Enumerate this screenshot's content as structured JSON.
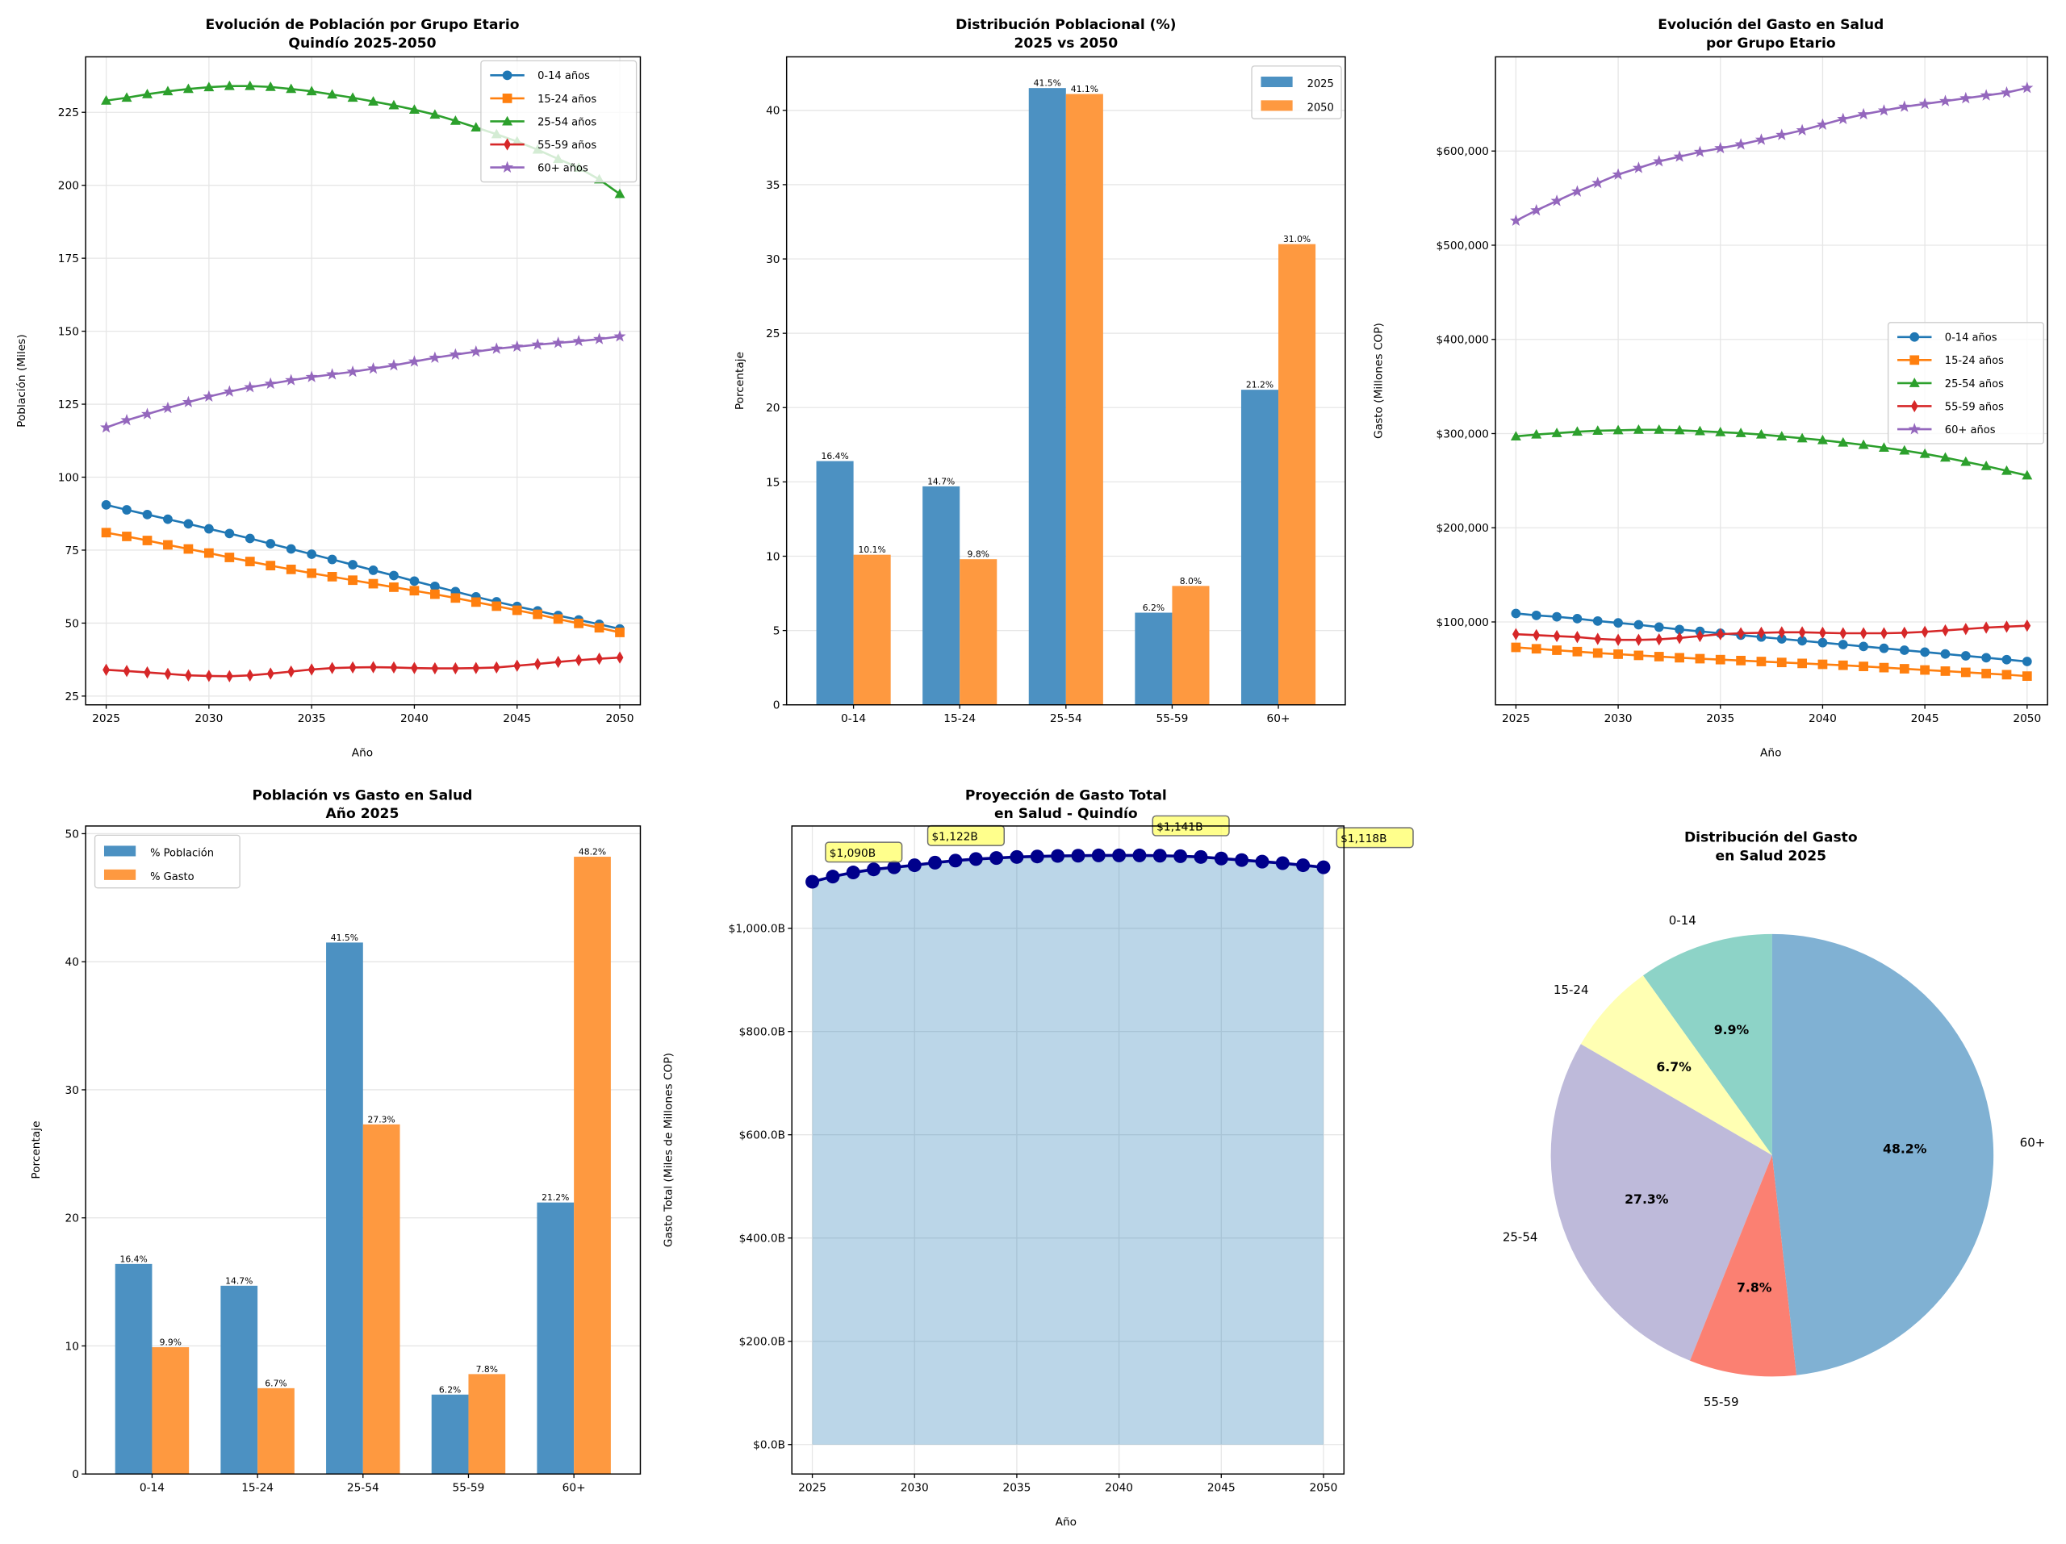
{
  "figure": {
    "groups_short": [
      "0-14",
      "15-24",
      "25-54",
      "55-59",
      "60+"
    ],
    "groups_long": [
      "0-14 años",
      "15-24 años",
      "25-54 años",
      "55-59 años",
      "60+ años"
    ],
    "group_colors": [
      "#1f77b4",
      "#ff7f0e",
      "#2ca02c",
      "#d62728",
      "#9467bd"
    ],
    "bar_colors": {
      "blue": "#4c91c2",
      "orange": "#fe9940"
    },
    "pie_colors": [
      "#8dd3c7",
      "#ffffb3",
      "#bebada",
      "#fb8072",
      "#80b1d3"
    ]
  },
  "chart_data": [
    {
      "id": "poblacion",
      "type": "line",
      "title": [
        "Evolución de Población por Grupo Etario",
        "Quindío 2025-2050"
      ],
      "xlabel": "Año",
      "ylabel": "Población (Miles)",
      "xlim": [
        2024,
        2051
      ],
      "ylim": [
        22,
        244
      ],
      "xticks": [
        2025,
        2030,
        2035,
        2040,
        2045,
        2050
      ],
      "yticks": [
        25,
        50,
        75,
        100,
        125,
        150,
        175,
        200,
        225
      ],
      "grid": true,
      "legend": "top-right",
      "x": [
        2025,
        2026,
        2027,
        2028,
        2029,
        2030,
        2031,
        2032,
        2033,
        2034,
        2035,
        2036,
        2037,
        2038,
        2039,
        2040,
        2041,
        2042,
        2043,
        2044,
        2045,
        2046,
        2047,
        2048,
        2049,
        2050
      ],
      "series": [
        {
          "name": "0-14 años",
          "marker": "circle",
          "values": [
            90.5,
            88.8,
            87.2,
            85.6,
            84.0,
            82.3,
            80.7,
            79.0,
            77.2,
            75.4,
            73.6,
            71.8,
            70.0,
            68.1,
            66.3,
            64.4,
            62.6,
            60.8,
            59.0,
            57.3,
            55.7,
            54.2,
            52.6,
            51.1,
            49.6,
            48.0
          ]
        },
        {
          "name": "15-24 años",
          "marker": "square",
          "values": [
            81.0,
            79.7,
            78.3,
            76.8,
            75.4,
            74.0,
            72.5,
            71.1,
            69.7,
            68.4,
            67.1,
            65.9,
            64.7,
            63.5,
            62.3,
            61.1,
            59.9,
            58.6,
            57.2,
            55.8,
            54.4,
            53.0,
            51.4,
            49.9,
            48.4,
            46.8
          ]
        },
        {
          "name": "25-54 años",
          "marker": "triangle",
          "values": [
            229.0,
            230.0,
            231.2,
            232.2,
            233.0,
            233.6,
            234.0,
            234.0,
            233.7,
            233.0,
            232.2,
            231.1,
            230.0,
            228.7,
            227.4,
            225.9,
            224.2,
            222.1,
            219.8,
            217.5,
            215.0,
            212.2,
            209.0,
            206.0,
            202.0,
            197.0
          ]
        },
        {
          "name": "55-59 años",
          "marker": "diamond",
          "values": [
            34.0,
            33.6,
            33.1,
            32.6,
            32.1,
            31.9,
            31.8,
            32.1,
            32.7,
            33.4,
            34.1,
            34.6,
            34.8,
            34.9,
            34.8,
            34.6,
            34.5,
            34.5,
            34.6,
            34.8,
            35.4,
            36.0,
            36.7,
            37.3,
            37.8,
            38.2
          ]
        },
        {
          "name": "60+ años",
          "marker": "star",
          "values": [
            117.0,
            119.5,
            121.6,
            123.7,
            125.7,
            127.6,
            129.3,
            130.8,
            132.0,
            133.2,
            134.3,
            135.2,
            136.1,
            137.2,
            138.3,
            139.6,
            140.9,
            142.0,
            143.0,
            144.0,
            144.7,
            145.4,
            146.0,
            146.6,
            147.3,
            148.2
          ]
        }
      ]
    },
    {
      "id": "distribucion",
      "type": "bar",
      "title": [
        "Distribución Poblacional (%)",
        "2025 vs 2050"
      ],
      "xlabel": "",
      "ylabel": "Porcentaje",
      "ylim": [
        0,
        43.6
      ],
      "yticks": [
        0,
        5,
        10,
        15,
        20,
        25,
        30,
        35,
        40
      ],
      "grid": true,
      "legend": "top-right",
      "categories": [
        "0-14",
        "15-24",
        "25-54",
        "55-59",
        "60+"
      ],
      "series": [
        {
          "name": "2025",
          "values": [
            16.4,
            14.7,
            41.5,
            6.2,
            21.2
          ],
          "labels": [
            "16.4%",
            "14.7%",
            "41.5%",
            "6.2%",
            "21.2%"
          ]
        },
        {
          "name": "2050",
          "values": [
            10.1,
            9.8,
            41.1,
            8.0,
            31.0
          ],
          "labels": [
            "10.1%",
            "9.8%",
            "41.1%",
            "8.0%",
            "31.0%"
          ]
        }
      ]
    },
    {
      "id": "gasto_grupo",
      "type": "line",
      "title": [
        "Evolución del Gasto en Salud",
        "por Grupo Etario"
      ],
      "xlabel": "Año",
      "ylabel": "Gasto (Millones COP)",
      "xlim": [
        2024,
        2051
      ],
      "ylim": [
        12000,
        700000
      ],
      "xticks": [
        2025,
        2030,
        2035,
        2040,
        2045,
        2050
      ],
      "yticks": [
        100000,
        200000,
        300000,
        400000,
        500000,
        600000
      ],
      "ytick_labels": [
        "$100,000",
        "$200,000",
        "$300,000",
        "$400,000",
        "$500,000",
        "$600,000"
      ],
      "grid": true,
      "legend": "center-right",
      "x": [
        2025,
        2026,
        2027,
        2028,
        2029,
        2030,
        2031,
        2032,
        2033,
        2034,
        2035,
        2036,
        2037,
        2038,
        2039,
        2040,
        2041,
        2042,
        2043,
        2044,
        2045,
        2046,
        2047,
        2048,
        2049,
        2050
      ],
      "series": [
        {
          "name": "0-14 años",
          "marker": "circle",
          "values": [
            109000,
            107000,
            105500,
            103500,
            101000,
            99000,
            97000,
            94500,
            92000,
            90000,
            88000,
            86000,
            84000,
            82000,
            80000,
            78000,
            76000,
            74000,
            72000,
            70000,
            68000,
            66000,
            64000,
            62000,
            60000,
            58000
          ]
        },
        {
          "name": "15-24 años",
          "marker": "square",
          "values": [
            73000,
            71500,
            70000,
            68500,
            67000,
            65800,
            64500,
            63200,
            62000,
            61000,
            60000,
            59000,
            58000,
            57000,
            56000,
            55000,
            54000,
            52800,
            51500,
            50300,
            49000,
            47800,
            46500,
            45200,
            44000,
            42500
          ]
        },
        {
          "name": "25-54 años",
          "marker": "triangle",
          "values": [
            297000,
            299000,
            300500,
            302000,
            303000,
            303500,
            304000,
            304000,
            303500,
            302500,
            301500,
            300500,
            299000,
            297000,
            295000,
            293000,
            290500,
            288000,
            285000,
            282000,
            278500,
            274500,
            270000,
            265500,
            260500,
            255500
          ]
        },
        {
          "name": "55-59 años",
          "marker": "diamond",
          "values": [
            87000,
            86000,
            85000,
            84000,
            82000,
            81000,
            81000,
            81500,
            83000,
            85000,
            87000,
            88000,
            88500,
            89000,
            89000,
            88500,
            88000,
            88000,
            88000,
            88500,
            89500,
            91000,
            92500,
            94000,
            95000,
            96000
          ]
        },
        {
          "name": "60+ años",
          "marker": "star",
          "values": [
            526000,
            537000,
            547000,
            557000,
            566000,
            575000,
            582000,
            589000,
            594000,
            599000,
            603000,
            607000,
            612000,
            617000,
            622000,
            628000,
            634000,
            639000,
            643000,
            647000,
            650000,
            653000,
            656000,
            659000,
            662000,
            667000
          ]
        }
      ]
    },
    {
      "id": "pob_vs_gasto",
      "type": "bar",
      "title": [
        "Población vs Gasto en Salud",
        "Año 2025"
      ],
      "xlabel": "",
      "ylabel": "Porcentaje",
      "ylim": [
        0,
        50.6
      ],
      "yticks": [
        0,
        10,
        20,
        30,
        40,
        50
      ],
      "grid": true,
      "legend": "top-left",
      "categories": [
        "0-14",
        "15-24",
        "25-54",
        "55-59",
        "60+"
      ],
      "series": [
        {
          "name": "% Población",
          "values": [
            16.4,
            14.7,
            41.5,
            6.2,
            21.2
          ],
          "labels": [
            "16.4%",
            "14.7%",
            "41.5%",
            "6.2%",
            "21.2%"
          ]
        },
        {
          "name": "% Gasto",
          "values": [
            9.9,
            6.7,
            27.3,
            7.8,
            48.2
          ],
          "labels": [
            "9.9%",
            "6.7%",
            "27.3%",
            "7.8%",
            "48.2%"
          ]
        }
      ]
    },
    {
      "id": "gasto_total",
      "type": "area",
      "title": [
        "Proyección de Gasto Total",
        "en Salud - Quindío"
      ],
      "xlabel": "Año",
      "ylabel": "Gasto Total (Miles de Millones COP)",
      "xlim": [
        2024,
        2051
      ],
      "ylim": [
        -57,
        1198
      ],
      "xticks": [
        2025,
        2030,
        2035,
        2040,
        2045,
        2050
      ],
      "yticks": [
        0,
        200,
        400,
        600,
        800,
        1000
      ],
      "ytick_labels": [
        "$0.0B",
        "$200.0B",
        "$400.0B",
        "$600.0B",
        "$800.0B",
        "$1,000.0B"
      ],
      "grid": true,
      "x": [
        2025,
        2026,
        2027,
        2028,
        2029,
        2030,
        2031,
        2032,
        2033,
        2034,
        2035,
        2036,
        2037,
        2038,
        2039,
        2040,
        2041,
        2042,
        2043,
        2044,
        2045,
        2046,
        2047,
        2048,
        2049,
        2050
      ],
      "values": [
        1090,
        1100,
        1108,
        1114,
        1118,
        1122,
        1127,
        1131,
        1134,
        1136,
        1138,
        1139,
        1140,
        1140.5,
        1141,
        1141,
        1141,
        1140.5,
        1139.5,
        1138,
        1135,
        1132,
        1129,
        1126,
        1122,
        1118
      ],
      "annotations": [
        {
          "x": 2025,
          "value": 1090,
          "label": "$1,090B"
        },
        {
          "x": 2030,
          "value": 1122,
          "label": "$1,122B"
        },
        {
          "x": 2041,
          "value": 1141,
          "label": "$1,141B"
        },
        {
          "x": 2050,
          "value": 1118,
          "label": "$1,118B"
        }
      ]
    },
    {
      "id": "pie_gasto",
      "type": "pie",
      "title": [
        "Distribución del Gasto",
        "en Salud 2025"
      ],
      "start_angle_deg": 90,
      "direction": "counterclockwise",
      "slices": [
        {
          "label": "0-14",
          "value": 9.9,
          "pct": "9.9%"
        },
        {
          "label": "15-24",
          "value": 6.7,
          "pct": "6.7%"
        },
        {
          "label": "25-54",
          "value": 27.3,
          "pct": "27.3%"
        },
        {
          "label": "55-59",
          "value": 7.8,
          "pct": "7.8%"
        },
        {
          "label": "60+",
          "value": 48.2,
          "pct": "48.2%"
        }
      ]
    }
  ]
}
